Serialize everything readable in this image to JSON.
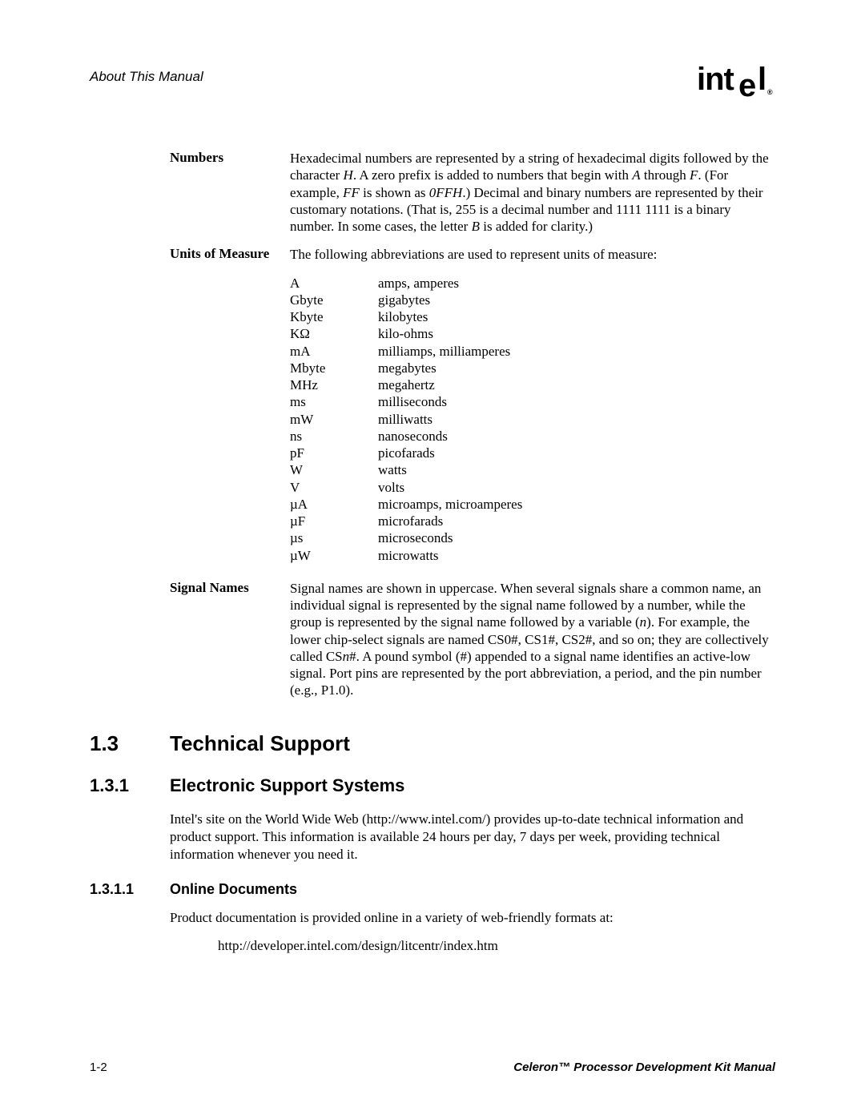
{
  "header": {
    "left": "About This Manual",
    "logo_text": "intel",
    "logo_reg": "®"
  },
  "defs": {
    "numbers": {
      "term": "Numbers",
      "body_parts": [
        "Hexadecimal numbers are represented by a string of hexadecimal digits followed by the character ",
        "H",
        ". A zero prefix is added to numbers that begin with ",
        "A",
        " through ",
        "F",
        ". (For example, ",
        "FF",
        " is shown as ",
        "0FFH",
        ".) Decimal and binary numbers are represented by their customary notations. (That is, 255 is a decimal number and 1111 1111 is a binary number. In some cases, the letter ",
        "B",
        " is added for clarity.)"
      ]
    },
    "units": {
      "term": "Units of Measure",
      "intro": "The following abbreviations are used to represent units of measure:",
      "rows": [
        {
          "abbr": "A",
          "desc": "amps, amperes"
        },
        {
          "abbr": "Gbyte",
          "desc": "gigabytes"
        },
        {
          "abbr": "Kbyte",
          "desc": "kilobytes"
        },
        {
          "abbr": "KΩ",
          "desc": "kilo-ohms"
        },
        {
          "abbr": "mA",
          "desc": "milliamps, milliamperes"
        },
        {
          "abbr": "Mbyte",
          "desc": "megabytes"
        },
        {
          "abbr": "MHz",
          "desc": "megahertz"
        },
        {
          "abbr": "ms",
          "desc": "milliseconds"
        },
        {
          "abbr": "mW",
          "desc": "milliwatts"
        },
        {
          "abbr": "ns",
          "desc": "nanoseconds"
        },
        {
          "abbr": "pF",
          "desc": "picofarads"
        },
        {
          "abbr": "W",
          "desc": "watts"
        },
        {
          "abbr": "V",
          "desc": "volts"
        },
        {
          "abbr": "µA",
          "desc": "microamps, microamperes"
        },
        {
          "abbr": "µF",
          "desc": "microfarads"
        },
        {
          "abbr": "µs",
          "desc": "microseconds"
        },
        {
          "abbr": "µW",
          "desc": "microwatts"
        }
      ]
    },
    "signals": {
      "term": "Signal Names",
      "body_parts": [
        "Signal names are shown in uppercase. When several signals share a common name, an individual signal is represented by the signal name followed by a number, while the group is represented by the signal name followed by a variable (",
        "n",
        "). For example, the lower chip-select signals are named CS0#, CS1#, CS2#, and so on; they are collectively called CS",
        "n",
        "#. A pound symbol (#) appended to a signal name identifies an active-low signal. Port pins are represented by the port abbreviation, a period, and the pin number (e.g., P1.0)."
      ]
    }
  },
  "sections": {
    "s13": {
      "num": "1.3",
      "title": "Technical Support"
    },
    "s131": {
      "num": "1.3.1",
      "title": "Electronic Support Systems"
    },
    "s1311": {
      "num": "1.3.1.1",
      "title": "Online Documents"
    }
  },
  "paragraphs": {
    "p131": "Intel's site on the World Wide Web (http://www.intel.com/) provides up-to-date technical information and product support. This information is available 24 hours per day, 7 days per week, providing technical information whenever you need it.",
    "p1311": "Product documentation is provided online in a variety of web-friendly formats at:",
    "url": "http://developer.intel.com/design/litcentr/index.htm"
  },
  "footer": {
    "left": "1-2",
    "right": "Celeron™ Processor Development Kit Manual"
  }
}
